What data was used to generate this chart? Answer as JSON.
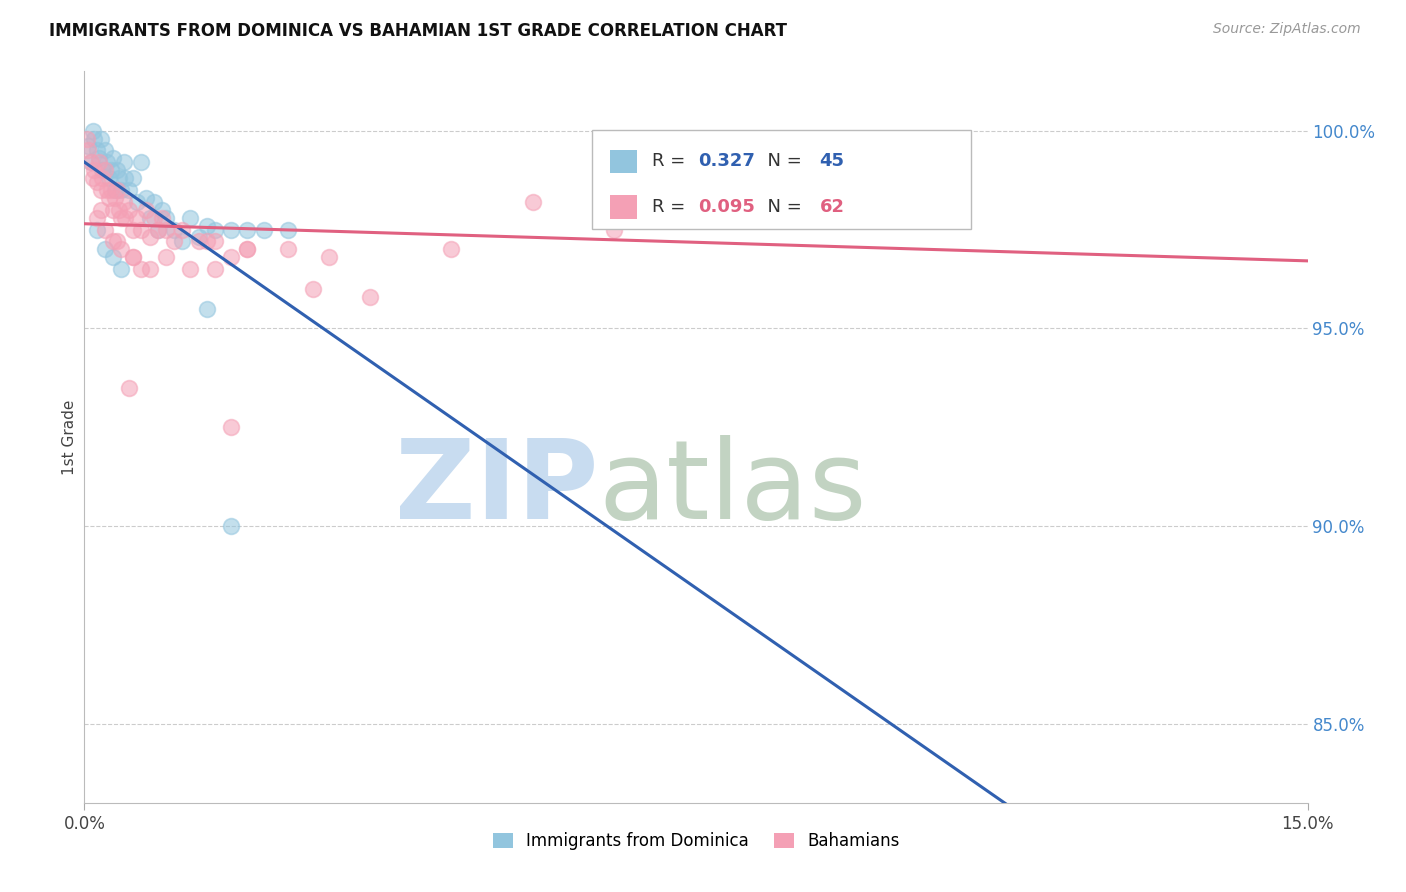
{
  "title": "IMMIGRANTS FROM DOMINICA VS BAHAMIAN 1ST GRADE CORRELATION CHART",
  "source": "Source: ZipAtlas.com",
  "ylabel": "1st Grade",
  "xlim": [
    0.0,
    15.0
  ],
  "ylim": [
    83.0,
    101.5
  ],
  "ytick_positions": [
    85.0,
    90.0,
    95.0,
    100.0
  ],
  "ytick_labels": [
    "85.0%",
    "90.0%",
    "95.0%",
    "100.0%"
  ],
  "xtick_positions": [
    0.0,
    15.0
  ],
  "xtick_labels": [
    "0.0%",
    "15.0%"
  ],
  "series1_name": "Immigrants from Dominica",
  "series1_color": "#92c5de",
  "series1_edge_color": "#92c5de",
  "series1_line_color": "#3060b0",
  "series1_R": 0.327,
  "series1_N": 45,
  "series2_name": "Bahamians",
  "series2_color": "#f4a0b5",
  "series2_edge_color": "#f4a0b5",
  "series2_line_color": "#e06080",
  "series2_R": 0.095,
  "series2_N": 62,
  "legend_color_text": "#3060b0",
  "legend_color_text2": "#e06080",
  "background_color": "#ffffff",
  "grid_color": "#cccccc",
  "title_fontsize": 12,
  "series1_x": [
    0.05,
    0.08,
    0.1,
    0.12,
    0.15,
    0.18,
    0.2,
    0.22,
    0.25,
    0.28,
    0.3,
    0.33,
    0.35,
    0.38,
    0.4,
    0.42,
    0.45,
    0.48,
    0.5,
    0.55,
    0.6,
    0.65,
    0.7,
    0.75,
    0.8,
    0.85,
    0.9,
    0.95,
    1.0,
    1.1,
    1.2,
    1.3,
    1.4,
    1.5,
    1.6,
    1.8,
    2.0,
    2.2,
    2.5,
    0.15,
    0.25,
    0.35,
    0.45,
    1.5,
    1.8
  ],
  "series1_y": [
    99.6,
    99.2,
    100.0,
    99.8,
    99.5,
    99.3,
    99.8,
    99.0,
    99.5,
    99.2,
    98.8,
    99.0,
    99.3,
    98.5,
    99.0,
    98.8,
    98.5,
    99.2,
    98.8,
    98.5,
    98.8,
    98.2,
    99.2,
    98.3,
    97.8,
    98.2,
    97.5,
    98.0,
    97.8,
    97.5,
    97.2,
    97.8,
    97.3,
    97.6,
    97.5,
    97.5,
    97.5,
    97.5,
    97.5,
    97.5,
    97.0,
    96.8,
    96.5,
    95.5,
    90.0
  ],
  "series2_x": [
    0.03,
    0.05,
    0.08,
    0.1,
    0.12,
    0.15,
    0.18,
    0.2,
    0.22,
    0.25,
    0.28,
    0.3,
    0.33,
    0.35,
    0.38,
    0.4,
    0.42,
    0.45,
    0.48,
    0.5,
    0.55,
    0.6,
    0.65,
    0.7,
    0.75,
    0.8,
    0.85,
    0.9,
    0.95,
    1.0,
    1.1,
    1.2,
    1.4,
    1.6,
    1.8,
    2.0,
    2.5,
    3.0,
    0.15,
    0.25,
    0.35,
    0.45,
    0.6,
    0.8,
    1.0,
    1.3,
    1.6,
    2.0,
    0.2,
    0.4,
    0.6,
    5.5,
    6.5,
    8.0,
    9.5,
    3.5,
    4.5,
    0.7,
    1.5,
    2.8,
    0.55,
    1.8
  ],
  "series2_y": [
    99.8,
    99.5,
    99.2,
    98.8,
    99.0,
    98.7,
    99.2,
    98.5,
    98.8,
    99.0,
    98.5,
    98.3,
    98.5,
    98.0,
    98.3,
    98.5,
    98.0,
    97.8,
    98.2,
    97.8,
    98.0,
    97.5,
    97.8,
    97.5,
    98.0,
    97.3,
    97.8,
    97.5,
    97.8,
    97.5,
    97.2,
    97.5,
    97.2,
    97.2,
    96.8,
    97.0,
    97.0,
    96.8,
    97.8,
    97.5,
    97.2,
    97.0,
    96.8,
    96.5,
    96.8,
    96.5,
    96.5,
    97.0,
    98.0,
    97.2,
    96.8,
    98.2,
    97.5,
    98.5,
    98.8,
    95.8,
    97.0,
    96.5,
    97.2,
    96.0,
    93.5,
    92.5
  ]
}
